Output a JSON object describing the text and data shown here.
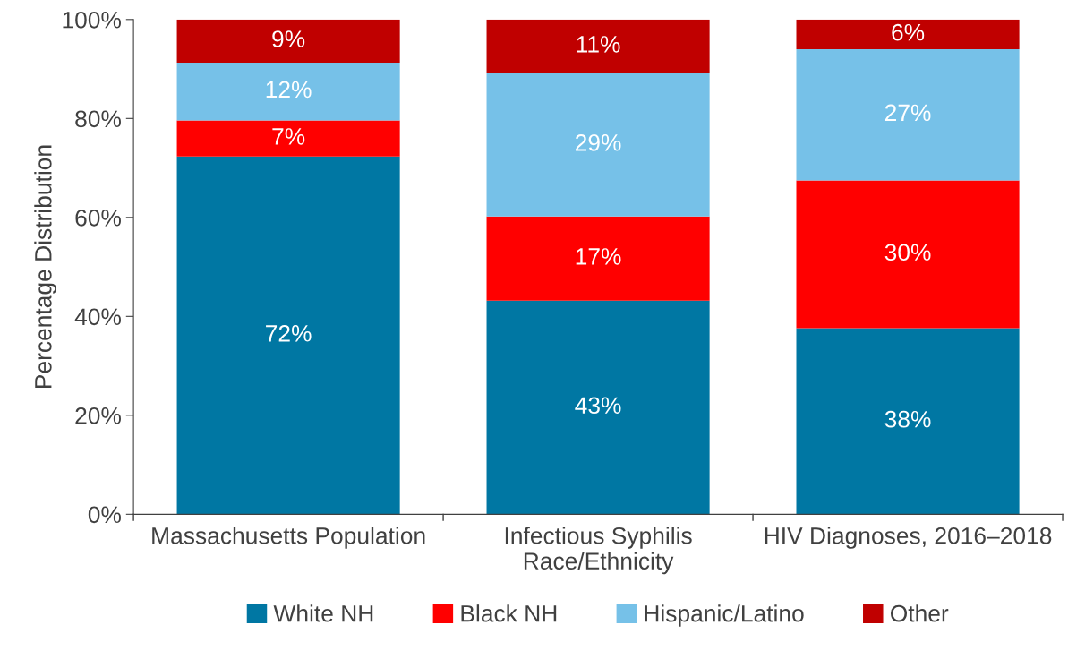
{
  "chart_data": {
    "type": "bar",
    "ylabel": "Percentage Distribution",
    "categories": [
      "Massachusetts Population",
      "Infectious Syphilis\nRace/Ethnicity",
      "HIV Diagnoses, 2016–2018"
    ],
    "stacked": true,
    "series": [
      {
        "name": "White NH",
        "color": "#0077a3",
        "values": [
          72.3,
          43.2,
          37.6
        ],
        "value_labels": [
          "72%",
          "43%",
          "38%"
        ]
      },
      {
        "name": "Black NH",
        "color": "#ff0000",
        "values": [
          7.3,
          17.0,
          29.9
        ],
        "value_labels": [
          "7%",
          "17%",
          "30%"
        ]
      },
      {
        "name": "Hispanic/Latino",
        "color": "#76c1e8",
        "values": [
          11.7,
          29.0,
          26.5
        ],
        "value_labels": [
          "12%",
          "29%",
          "27%"
        ]
      },
      {
        "name": "Other",
        "color": "#c00000",
        "values": [
          8.7,
          10.8,
          6.0
        ],
        "value_labels": [
          "9%",
          "11%",
          "6%"
        ]
      }
    ],
    "ylim": [
      0,
      100
    ],
    "yticks": [
      {
        "value": 0,
        "label": "0%"
      },
      {
        "value": 20,
        "label": "20%"
      },
      {
        "value": 40,
        "label": "40%"
      },
      {
        "value": 60,
        "label": "60%"
      },
      {
        "value": 80,
        "label": "80%"
      },
      {
        "value": 100,
        "label": "100%"
      }
    ],
    "grid": false,
    "legend": "bottom"
  }
}
